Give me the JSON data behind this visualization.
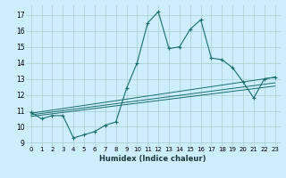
{
  "title": "",
  "xlabel": "Humidex (Indice chaleur)",
  "bg_color": "#cceeff",
  "grid_color": "#aacccc",
  "line_color": "#1a6e6a",
  "xlim": [
    -0.5,
    23.5
  ],
  "ylim": [
    8.8,
    17.6
  ],
  "xticks": [
    0,
    1,
    2,
    3,
    4,
    5,
    6,
    7,
    8,
    9,
    10,
    11,
    12,
    13,
    14,
    15,
    16,
    17,
    18,
    19,
    20,
    21,
    22,
    23
  ],
  "yticks": [
    9,
    10,
    11,
    12,
    13,
    14,
    15,
    16,
    17
  ],
  "series1_x": [
    0,
    1,
    2,
    3,
    4,
    5,
    6,
    7,
    8,
    9,
    10,
    11,
    12,
    13,
    14,
    15,
    16,
    17,
    18,
    19,
    20,
    21,
    22,
    23
  ],
  "series1_y": [
    10.9,
    10.5,
    10.7,
    10.7,
    9.3,
    9.5,
    9.7,
    10.1,
    10.3,
    12.4,
    14.0,
    16.5,
    17.2,
    14.9,
    15.0,
    16.1,
    16.7,
    14.3,
    14.2,
    13.7,
    12.8,
    11.8,
    13.0,
    13.1
  ],
  "series2_x": [
    0,
    23
  ],
  "series2_y": [
    10.85,
    13.1
  ],
  "series3_x": [
    0,
    23
  ],
  "series3_y": [
    10.75,
    12.75
  ],
  "series4_x": [
    0,
    23
  ],
  "series4_y": [
    10.65,
    12.55
  ]
}
